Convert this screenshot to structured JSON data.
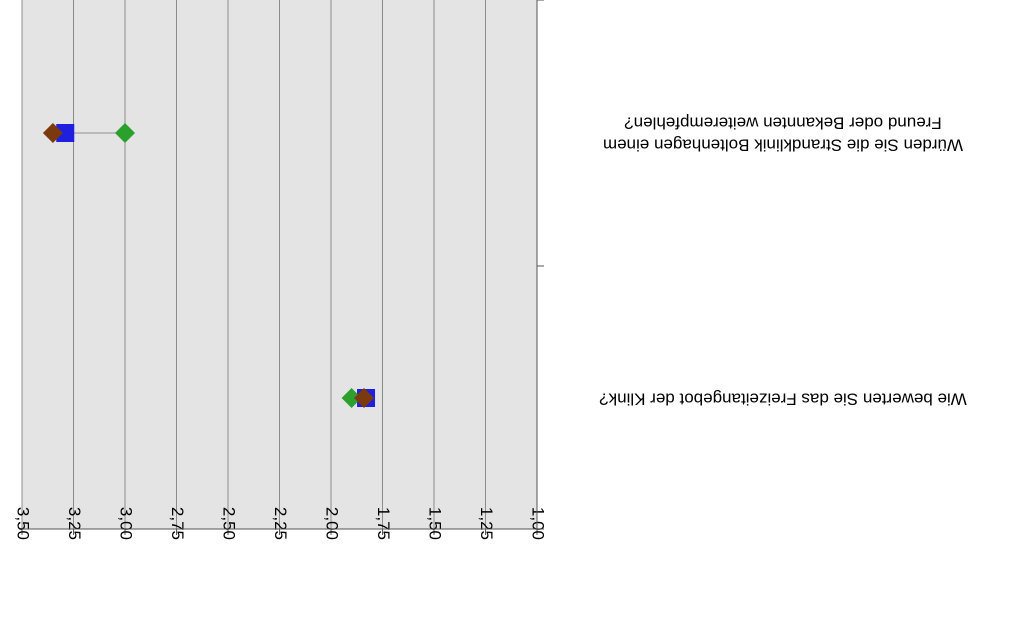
{
  "chart_data": {
    "type": "scatter",
    "orientation": "rotated-180",
    "title": "",
    "x_axis": {
      "min": 1.0,
      "max": 3.5,
      "step": 0.25,
      "reversed": true
    },
    "tick_labels": [
      "1,00",
      "1,25",
      "1,50",
      "1,75",
      "2,00",
      "2,25",
      "2,50",
      "2,75",
      "3,00",
      "3,25",
      "3,50"
    ],
    "categories": [
      "Wie bewerten Sie das Freizeitangebot der Klink?",
      "Würden Sie die Strandklinik Boltenhagen einem Freund oder Bekannten weiterempfehlen?"
    ],
    "series": [
      {
        "marker": "square",
        "color": "#1f1fe0",
        "values": [
          1.83,
          3.29
        ]
      },
      {
        "marker": "diamond",
        "color": "#2ca02c",
        "values": [
          1.9,
          3.0
        ]
      },
      {
        "marker": "diamond",
        "color": "#7b3a0e",
        "values": [
          1.84,
          3.35
        ]
      }
    ],
    "range_line_color": "#a0a0a0",
    "plot_background": "#e4e4e4",
    "gridlines": true
  }
}
